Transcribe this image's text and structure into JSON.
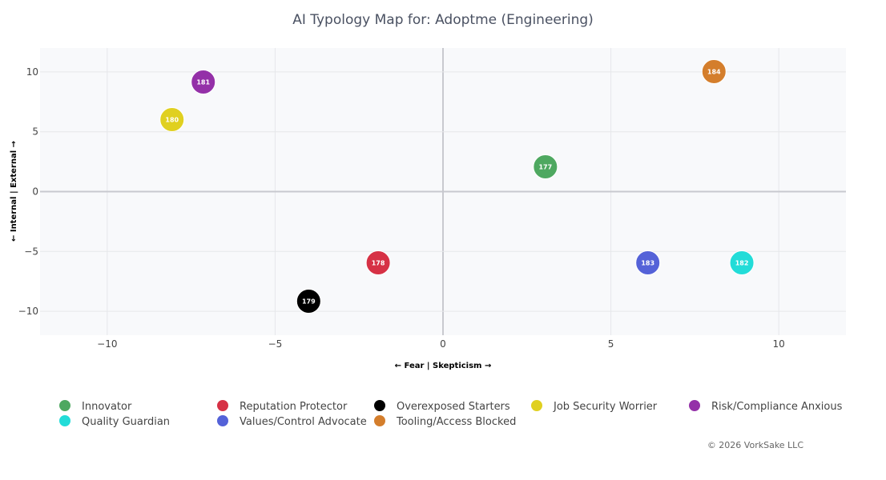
{
  "chart_data": {
    "type": "scatter",
    "title": "AI Typology Map  for: Adoptme (Engineering)",
    "xlabel": "← Fear | Skepticism →",
    "ylabel": "← Internal | External →",
    "xlim": [
      -12,
      12
    ],
    "ylim": [
      -12,
      12
    ],
    "xticks": [
      -10,
      -5,
      0,
      5,
      10
    ],
    "yticks": [
      -10,
      -5,
      0,
      5,
      10
    ],
    "xtick_labels": [
      "−10",
      "−5",
      "0",
      "5",
      "10"
    ],
    "ytick_labels": [
      "−10",
      "−5",
      "0",
      "5",
      "10"
    ],
    "grid": true,
    "legend_position": "bottom",
    "series": [
      {
        "name": "Innovator",
        "color": "#4ea860",
        "points": [
          {
            "x": 3.05,
            "y": 2.07,
            "label": "177"
          }
        ]
      },
      {
        "name": "Reputation Protector",
        "color": "#d63145",
        "points": [
          {
            "x": -1.93,
            "y": -5.95,
            "label": "178"
          }
        ]
      },
      {
        "name": "Overexposed Starters",
        "color": "#000000",
        "points": [
          {
            "x": -4.0,
            "y": -9.16,
            "label": "179"
          }
        ]
      },
      {
        "name": "Job Security Worrier",
        "color": "#e0d020",
        "points": [
          {
            "x": -8.07,
            "y": 6.02,
            "label": "180"
          }
        ]
      },
      {
        "name": "Risk/Compliance Anxious",
        "color": "#9430a8",
        "points": [
          {
            "x": -7.14,
            "y": 9.16,
            "label": "181"
          }
        ]
      },
      {
        "name": "Quality Guardian",
        "color": "#22dcd8",
        "points": [
          {
            "x": 8.9,
            "y": -5.95,
            "label": "182"
          }
        ]
      },
      {
        "name": "Values/Control Advocate",
        "color": "#5462d8",
        "points": [
          {
            "x": 6.1,
            "y": -5.95,
            "label": "183"
          }
        ]
      },
      {
        "name": "Tooling/Access Blocked",
        "color": "#d47e2c",
        "points": [
          {
            "x": 8.07,
            "y": 10.03,
            "label": "184"
          }
        ]
      }
    ]
  },
  "footer": "© 2026 VorkSake LLC"
}
